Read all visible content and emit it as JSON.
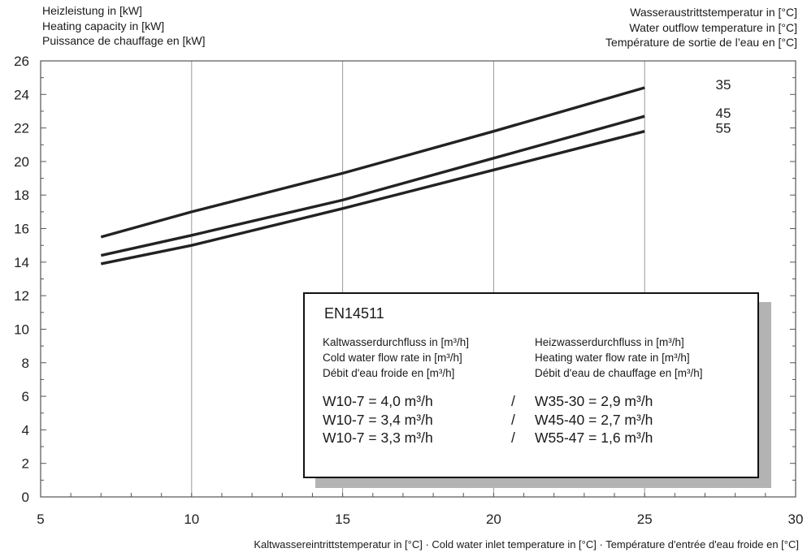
{
  "y_axis_title": [
    "Heizleistung in [kW]",
    "Heating capacity in [kW]",
    "Puissance de chauffage en [kW]"
  ],
  "legend_title_right": [
    "Wasseraustrittstemperatur in [°C]",
    "Water outflow temperature in [°C]",
    "Température de sortie de l’eau en [°C]"
  ],
  "x_axis_title": "Kaltwassereintrittstemperatur in [°C] · Cold water inlet temperature in [°C] · Température d'entrée d'eau froide en [°C]",
  "legend_box": {
    "title": "EN14511",
    "left_header": [
      "Kaltwasserdurchfluss in [m³/h]",
      "Cold water flow rate in [m³/h]",
      "Débit d'eau froide en [m³/h]"
    ],
    "right_header": [
      "Heizwasserdurchfluss in [m³/h]",
      "Heating water flow rate in [m³/h]",
      "Débit d'eau de chauffage en [m³/h]"
    ],
    "rows": [
      {
        "cold": "W10-7 = 4,0 m³/h",
        "sep": "/",
        "heat": "W35-30 = 2,9 m³/h"
      },
      {
        "cold": "W10-7 = 3,4 m³/h",
        "sep": "/",
        "heat": "W45-40 = 2,7 m³/h"
      },
      {
        "cold": "W10-7 = 3,3 m³/h",
        "sep": "/",
        "heat": "W55-47 = 1,6 m³/h"
      }
    ]
  },
  "chart_data": {
    "type": "line",
    "xlabel": "Kaltwassereintrittstemperatur in [°C] · Cold water inlet temperature in [°C] · Température d'entrée d'eau froide en [°C]",
    "ylabel": "Heating capacity in [kW]",
    "xlim": [
      5,
      30
    ],
    "ylim": [
      0,
      26
    ],
    "xticks": [
      5,
      10,
      15,
      20,
      25,
      30
    ],
    "yticks": [
      0,
      2,
      4,
      6,
      8,
      10,
      12,
      14,
      16,
      18,
      20,
      22,
      24,
      26
    ],
    "grid": true,
    "line_color": "#222222",
    "series": [
      {
        "name": "35",
        "x": [
          7,
          10,
          15,
          20,
          25
        ],
        "y": [
          15.5,
          17.0,
          19.3,
          21.8,
          24.4
        ]
      },
      {
        "name": "45",
        "x": [
          7,
          10,
          15,
          20,
          25
        ],
        "y": [
          14.4,
          15.6,
          17.7,
          20.2,
          22.7
        ]
      },
      {
        "name": "55",
        "x": [
          7,
          10,
          15,
          20,
          25
        ],
        "y": [
          13.9,
          15.0,
          17.2,
          19.5,
          21.8
        ]
      }
    ]
  }
}
